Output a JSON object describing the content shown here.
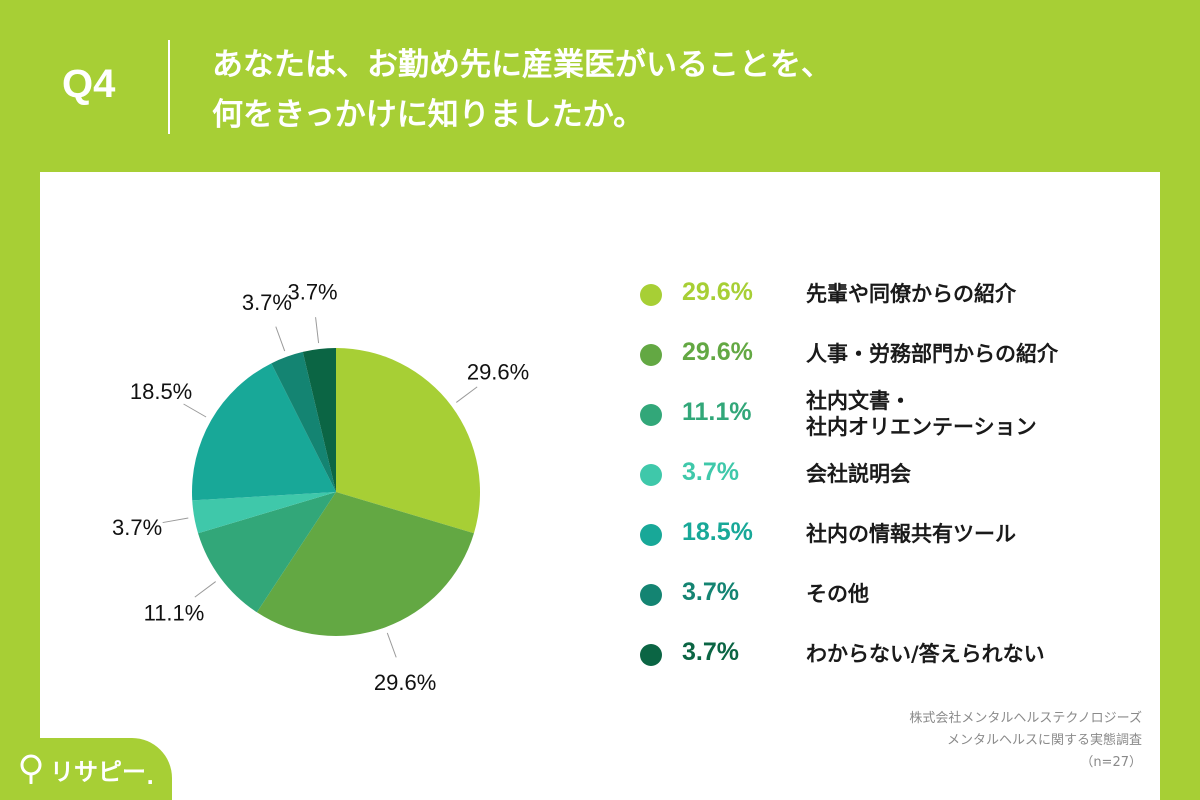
{
  "question": {
    "number": "Q4",
    "title_line1": "あなたは、お勤め先に産業医がいることを、",
    "title_line2": "何をきっかけに知りましたか。"
  },
  "chart_data": {
    "type": "pie",
    "title": "",
    "slices": [
      {
        "pct": 29.6,
        "pct_label": "29.6%",
        "label_lines": [
          "先輩や同僚からの紹介"
        ],
        "color": "#a7cf35"
      },
      {
        "pct": 29.6,
        "pct_label": "29.6%",
        "label_lines": [
          "人事・労務部門からの紹介"
        ],
        "color": "#63a843"
      },
      {
        "pct": 11.1,
        "pct_label": "11.1%",
        "label_lines": [
          "社内文書・",
          "社内オリエンテーション"
        ],
        "color": "#32a779"
      },
      {
        "pct": 3.7,
        "pct_label": "3.7%",
        "label_lines": [
          "会社説明会"
        ],
        "color": "#3fc8aa"
      },
      {
        "pct": 18.5,
        "pct_label": "18.5%",
        "label_lines": [
          "社内の情報共有ツール"
        ],
        "color": "#18a898"
      },
      {
        "pct": 3.7,
        "pct_label": "3.7%",
        "label_lines": [
          "その他"
        ],
        "color": "#148472"
      },
      {
        "pct": 3.7,
        "pct_label": "3.7%",
        "label_lines": [
          "わからない/答えられない"
        ],
        "color": "#0b6544"
      }
    ],
    "legend_placement": "right"
  },
  "source": {
    "company": "株式会社メンタルヘルステクノロジーズ",
    "survey": "メンタルヘルスに関する実態調査",
    "sample": "（n=27）"
  },
  "logo": {
    "text": "リサピー",
    "icon": "pin-icon"
  },
  "colors": {
    "brand_green": "#a7cf35",
    "text_dark": "#1a1a1a",
    "source_gray": "#8a8a8a"
  }
}
